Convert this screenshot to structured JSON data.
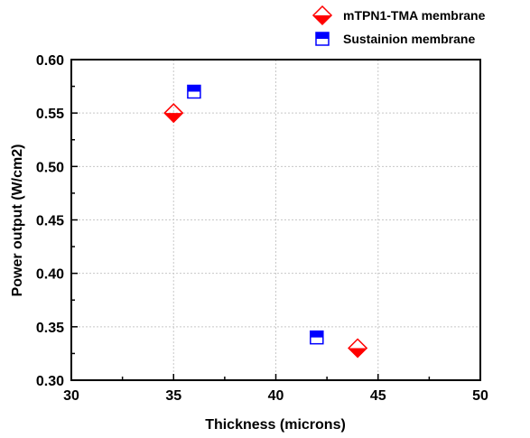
{
  "chart_data": {
    "type": "scatter",
    "xlabel": "Thickness (microns)",
    "ylabel": "Power output (W/cm2)",
    "xlim": [
      30,
      50
    ],
    "ylim": [
      0.3,
      0.6
    ],
    "xticks": [
      "30",
      "35",
      "40",
      "45",
      "50"
    ],
    "yticks": [
      "0.30",
      "0.35",
      "0.40",
      "0.45",
      "0.50",
      "0.55",
      "0.60"
    ],
    "grid": true,
    "legend_position": "top-right, outside plot area",
    "series": [
      {
        "name": "mTPN1-TMA membrane",
        "marker": "half-filled-diamond",
        "color": "#ff0000",
        "x": [
          35,
          44
        ],
        "y": [
          0.55,
          0.33
        ]
      },
      {
        "name": "Sustainion membrane",
        "marker": "half-filled-square",
        "color": "#0000ff",
        "x": [
          36,
          42
        ],
        "y": [
          0.57,
          0.34
        ]
      }
    ]
  }
}
